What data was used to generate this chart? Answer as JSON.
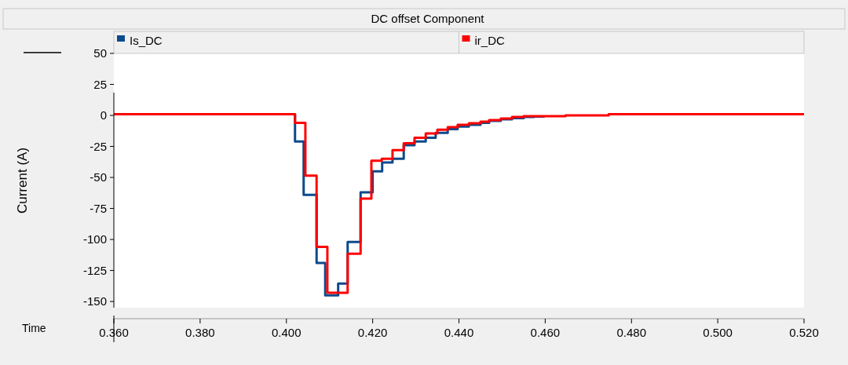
{
  "chart_data": {
    "type": "step",
    "title": "DC offset Component",
    "xlabel": "Time",
    "ylabel": "Current (A)",
    "xlim": [
      0.36,
      0.52
    ],
    "xticks": [
      {
        "value": 0.36,
        "label": "0.360"
      },
      {
        "value": 0.38,
        "label": "0.380"
      },
      {
        "value": 0.4,
        "label": "0.400"
      },
      {
        "value": 0.42,
        "label": "0.420"
      },
      {
        "value": 0.44,
        "label": "0.440"
      },
      {
        "value": 0.46,
        "label": "0.460"
      },
      {
        "value": 0.48,
        "label": "0.480"
      },
      {
        "value": 0.5,
        "label": "0.500"
      },
      {
        "value": 0.52,
        "label": "0.520"
      }
    ],
    "ylim": [
      -155,
      50
    ],
    "yticks": [
      50,
      25,
      0,
      -25,
      -50,
      -75,
      -100,
      -125,
      -150
    ],
    "grid": false,
    "legend": "top",
    "series": [
      {
        "name": "Is_DC",
        "color": "#0c4a8c",
        "x": [
          0.36,
          0.402,
          0.404,
          0.407,
          0.409,
          0.412,
          0.4142,
          0.4172,
          0.42,
          0.4222,
          0.4246,
          0.4272,
          0.4297,
          0.4323,
          0.4346,
          0.4374,
          0.4397,
          0.4423,
          0.445,
          0.447,
          0.4497,
          0.4523,
          0.455,
          0.4574,
          0.4597
        ],
        "values": [
          1,
          -21,
          -64,
          -119,
          -145,
          -135.5,
          -102,
          -62,
          -45,
          -38,
          -35,
          -24,
          -21,
          -18,
          -14,
          -11,
          -9,
          -7.6,
          -6,
          -4.4,
          -3.1,
          -2.2,
          -1.3,
          -0.9,
          -0.5
        ]
      },
      {
        "name": "ir_DC",
        "color": "#ff0000",
        "x": [
          0.36,
          0.402,
          0.4044,
          0.407,
          0.4095,
          0.4142,
          0.4172,
          0.4197,
          0.4221,
          0.4246,
          0.4272,
          0.4297,
          0.4323,
          0.435,
          0.4374,
          0.4397,
          0.4423,
          0.445,
          0.447,
          0.4497,
          0.4523,
          0.455,
          0.4647,
          0.4747,
          0.52
        ],
        "values": [
          1,
          -6,
          -48.5,
          -106,
          -143,
          -111.5,
          -67,
          -36.5,
          -35,
          -28,
          -22.5,
          -18,
          -14.5,
          -11.5,
          -9.5,
          -7.6,
          -6.3,
          -5,
          -3.8,
          -2.5,
          -1.3,
          -0.6,
          0,
          1,
          1
        ]
      }
    ]
  }
}
